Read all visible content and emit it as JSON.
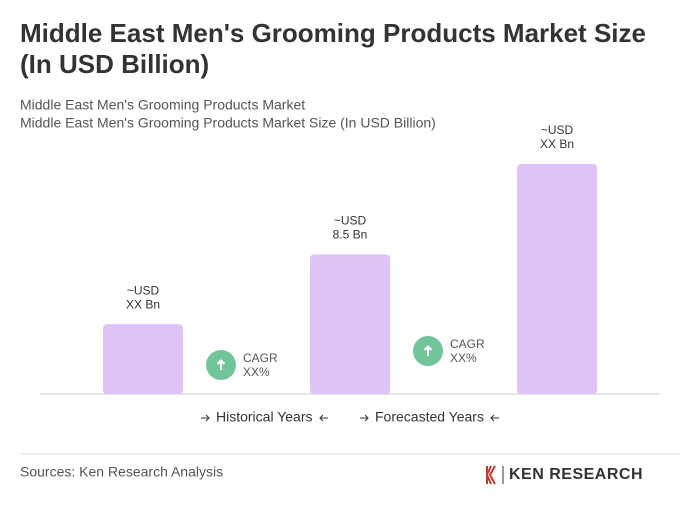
{
  "chart_data": {
    "type": "bar",
    "title": [
      "Middle East Men's Grooming Products Market Size",
      "(In USD Billion)"
    ],
    "subtitle": [
      "Middle East Men's Grooming Products Market",
      "Middle East Men's Grooming Products Market Size (In USD Billion)"
    ],
    "categories": [
      null,
      null,
      null
    ],
    "values": [
      4.25,
      8.5,
      14
    ],
    "value_labels": [
      [
        "~USD",
        "XX Bn"
      ],
      [
        "~USD",
        "8.5 Bn"
      ],
      [
        "~USD",
        "XX Bn"
      ]
    ],
    "color": "#dfc3f7",
    "annotations": [
      [
        "CAGR",
        "XX%"
      ],
      [
        "CAGR",
        "XX%"
      ]
    ],
    "annotation_color": "#72c59a",
    "legend": [
      "Historical Years",
      "Forecasted Years"
    ],
    "source": "Sources: Ken Research Analysis",
    "logo": "KEN RESEARCH"
  }
}
